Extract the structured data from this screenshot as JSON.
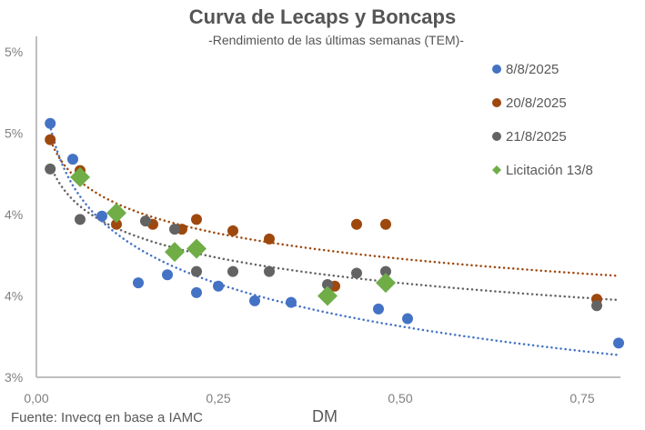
{
  "chart_data": {
    "type": "scatter",
    "title": "Curva de Lecaps y Boncaps",
    "subtitle": "-Rendimiento de las últimas semanas (TEM)-",
    "xlabel": "DM",
    "ylabel": "",
    "source": "Fuente: Invecq en base a IAMC",
    "xlim": [
      0,
      0.8
    ],
    "ylim": [
      3.0,
      5.0
    ],
    "x_ticks": [
      0,
      0.25,
      0.5,
      0.75
    ],
    "x_tick_labels": [
      "0,00",
      "0,25",
      "0,50",
      "0,75"
    ],
    "y_ticks": [
      3.0,
      3.5,
      4.0,
      4.5,
      5.0
    ],
    "y_tick_labels": [
      "3%",
      "4%",
      "4%",
      "5%",
      "5%"
    ],
    "grid": false,
    "legend_position": "top-right",
    "series": [
      {
        "name": "8/8/2025",
        "color": "#4472C4",
        "marker": "circle",
        "points": [
          [
            0.019,
            4.56
          ],
          [
            0.05,
            4.34
          ],
          [
            0.09,
            3.99
          ],
          [
            0.14,
            3.58
          ],
          [
            0.18,
            3.63
          ],
          [
            0.22,
            3.52
          ],
          [
            0.25,
            3.56
          ],
          [
            0.3,
            3.47
          ],
          [
            0.35,
            3.46
          ],
          [
            0.47,
            3.42
          ],
          [
            0.51,
            3.36
          ],
          [
            0.8,
            3.21
          ]
        ],
        "trendline": {
          "type": "log",
          "color": "#4472C4"
        }
      },
      {
        "name": "20/8/2025",
        "color": "#9E480E",
        "marker": "circle",
        "points": [
          [
            0.019,
            4.46
          ],
          [
            0.06,
            4.27
          ],
          [
            0.11,
            3.94
          ],
          [
            0.16,
            3.94
          ],
          [
            0.2,
            3.91
          ],
          [
            0.22,
            3.97
          ],
          [
            0.27,
            3.9
          ],
          [
            0.32,
            3.85
          ],
          [
            0.41,
            3.56
          ],
          [
            0.44,
            3.94
          ],
          [
            0.48,
            3.94
          ],
          [
            0.77,
            3.48
          ]
        ],
        "trendline": {
          "type": "log",
          "color": "#9E480E"
        }
      },
      {
        "name": "21/8/2025",
        "color": "#636363",
        "marker": "circle",
        "points": [
          [
            0.019,
            4.28
          ],
          [
            0.06,
            3.97
          ],
          [
            0.11,
            4.01
          ],
          [
            0.15,
            3.96
          ],
          [
            0.19,
            3.91
          ],
          [
            0.22,
            3.65
          ],
          [
            0.27,
            3.65
          ],
          [
            0.32,
            3.65
          ],
          [
            0.4,
            3.57
          ],
          [
            0.44,
            3.64
          ],
          [
            0.48,
            3.65
          ],
          [
            0.77,
            3.44
          ]
        ],
        "trendline": {
          "type": "log",
          "color": "#636363"
        }
      },
      {
        "name": "Licitación 13/8",
        "color": "#70AD47",
        "marker": "diamond",
        "points": [
          [
            0.06,
            4.23
          ],
          [
            0.11,
            4.01
          ],
          [
            0.19,
            3.77
          ],
          [
            0.22,
            3.79
          ],
          [
            0.4,
            3.5
          ],
          [
            0.48,
            3.58
          ]
        ],
        "trendline": null
      }
    ]
  }
}
